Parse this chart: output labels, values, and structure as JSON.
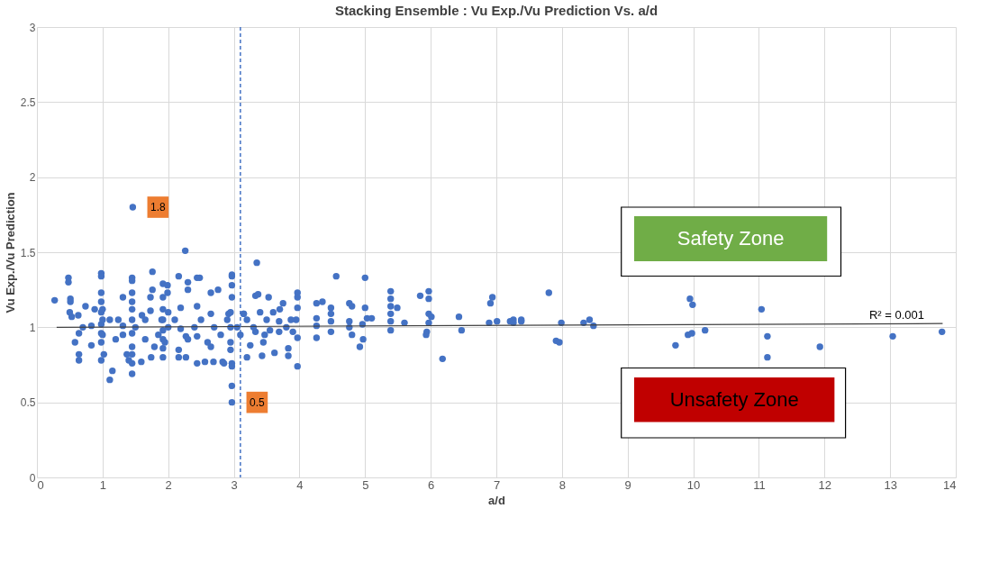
{
  "chart_data": {
    "type": "scatter",
    "title": "Stacking Ensemble : Vu Exp./Vu Prediction Vs. a/d",
    "xlabel": "a/d",
    "ylabel": "Vu Exp./Vu Prediction",
    "xlim": [
      0,
      14
    ],
    "xticks": [
      0,
      1,
      2,
      3,
      4,
      5,
      6,
      7,
      8,
      9,
      10,
      11,
      12,
      13,
      14
    ],
    "ylim": [
      0,
      3
    ],
    "yticks": [
      0,
      0.5,
      1,
      1.5,
      2,
      2.5,
      3
    ],
    "grid": true,
    "series": [
      {
        "color": "#4472c4",
        "marker": "circle",
        "x": [
          1.46,
          0.27,
          0.48,
          0.48,
          0.51,
          0.51,
          0.53,
          0.63,
          0.74,
          0.64,
          0.58,
          0.64,
          0.64,
          0.83,
          0.83,
          0.88,
          0.98,
          0.98,
          0.98,
          0.98,
          0.98,
          0.98,
          0.98,
          0.98,
          0.98,
          1.11,
          1.15,
          1.11,
          1.02,
          1.24,
          1.31,
          1.31,
          1.31,
          1.37,
          1.4,
          1.45,
          1.45,
          1.45,
          1.45,
          1.45,
          1.45,
          1.45,
          1.45,
          1.45,
          1.45,
          1.45,
          1.59,
          1.65,
          1.65,
          1.73,
          1.76,
          1.76,
          1.73,
          1.74,
          1.79,
          1.92,
          1.92,
          1.92,
          1.92,
          1.92,
          1.92,
          1.92,
          1.92,
          1.99,
          1.99,
          2.16,
          2.26,
          2.3,
          2.3,
          2.44,
          2.48,
          2.19,
          2.19,
          2.27,
          2.27,
          2.16,
          2.16,
          2.44,
          2.44,
          2.44,
          2.56,
          2.65,
          2.65,
          2.65,
          2.69,
          2.76,
          2.83,
          2.92,
          2.97,
          2.97,
          2.97,
          2.97,
          2.97,
          2.97,
          3.15,
          3.35,
          2.97,
          2.85,
          2.97,
          3.33,
          3.37,
          3.53,
          3.75,
          3.97,
          3.97,
          3.97,
          3.97,
          3.97,
          3.83,
          3.83,
          3.62,
          3.43,
          3.2,
          3.15,
          3.33,
          3.47,
          3.69,
          3.69,
          3.87,
          3.05,
          3.1,
          3.2,
          3.3,
          3.4,
          3.5,
          3.55,
          3.6,
          3.7,
          3.8,
          3.9,
          3.95,
          3.45,
          3.25,
          2.95,
          2.95,
          2.95,
          2.95,
          2.9,
          2.8,
          2.7,
          2.6,
          2.5,
          2.4,
          2.3,
          2.1,
          2.0,
          1.95,
          1.9,
          1.85,
          2.0,
          1.5,
          1.0,
          1.0,
          1.0,
          0.5,
          0.7,
          1.2,
          1.6,
          4.26,
          4.35,
          4.26,
          4.26,
          4.26,
          4.48,
          4.48,
          4.48,
          4.48,
          4.56,
          4.76,
          4.8,
          4.76,
          4.76,
          4.8,
          4.92,
          4.97,
          5.0,
          5.0,
          5.03,
          5.1,
          4.96,
          5.39,
          5.39,
          5.39,
          5.39,
          5.49,
          5.39,
          5.39,
          5.6,
          5.84,
          5.97,
          5.97,
          5.97,
          5.97,
          5.94,
          5.93,
          6.01,
          6.18,
          6.43,
          6.47,
          6.94,
          6.91,
          6.89,
          7.01,
          7.21,
          7.26,
          7.38,
          7.38,
          7.26,
          7.8,
          7.91,
          7.96,
          7.99,
          8.33,
          8.42,
          8.48,
          9.73,
          9.92,
          9.98,
          10.18,
          9.95,
          9.99,
          11.04,
          11.13,
          11.13,
          11.93,
          13.04,
          13.79
        ],
        "values": [
          1.8,
          1.18,
          1.33,
          1.3,
          1.19,
          1.17,
          1.07,
          1.08,
          1.14,
          0.96,
          0.9,
          0.82,
          0.78,
          1.01,
          0.88,
          1.12,
          1.36,
          1.34,
          1.23,
          1.17,
          1.1,
          1.02,
          0.96,
          0.9,
          0.78,
          1.05,
          0.71,
          0.65,
          0.82,
          1.05,
          1.2,
          1.01,
          0.95,
          0.82,
          0.78,
          1.33,
          1.31,
          1.23,
          1.17,
          1.12,
          1.05,
          0.96,
          0.87,
          0.82,
          0.76,
          0.69,
          0.77,
          1.05,
          0.92,
          1.2,
          1.37,
          1.25,
          1.11,
          0.8,
          0.87,
          1.29,
          1.2,
          1.12,
          1.05,
          0.98,
          0.92,
          0.86,
          0.8,
          1.28,
          1.23,
          1.34,
          1.51,
          1.3,
          1.25,
          1.33,
          1.33,
          1.13,
          0.99,
          0.94,
          0.8,
          0.85,
          0.8,
          1.14,
          0.94,
          0.76,
          0.77,
          1.23,
          1.09,
          0.87,
          0.77,
          1.25,
          0.77,
          1.09,
          1.34,
          1.28,
          1.2,
          0.76,
          0.61,
          0.5,
          1.09,
          1.43,
          1.35,
          0.76,
          0.74,
          1.21,
          1.22,
          1.2,
          1.16,
          1.23,
          1.2,
          1.13,
          0.93,
          0.74,
          0.81,
          0.86,
          0.83,
          0.81,
          0.8,
          1.09,
          0.97,
          0.95,
          1.04,
          0.97,
          1.05,
          1.0,
          0.95,
          1.05,
          1.0,
          1.1,
          1.05,
          0.98,
          1.1,
          1.12,
          1.0,
          0.97,
          1.05,
          0.9,
          0.88,
          1.1,
          1.0,
          0.9,
          0.85,
          1.05,
          0.95,
          1.0,
          0.9,
          1.05,
          1.0,
          0.92,
          1.05,
          1.0,
          0.9,
          1.05,
          0.95,
          1.1,
          1.0,
          1.05,
          0.95,
          1.12,
          1.1,
          1.0,
          0.92,
          1.08,
          1.16,
          1.17,
          1.06,
          1.01,
          0.93,
          1.13,
          1.09,
          1.04,
          0.97,
          1.34,
          1.16,
          1.14,
          1.04,
          1.0,
          0.95,
          0.87,
          0.92,
          1.33,
          1.13,
          1.06,
          1.06,
          1.02,
          1.24,
          1.19,
          1.14,
          1.09,
          1.13,
          1.04,
          0.98,
          1.03,
          1.21,
          1.24,
          1.19,
          1.09,
          1.03,
          0.97,
          0.95,
          1.07,
          0.79,
          1.07,
          0.98,
          1.2,
          1.16,
          1.03,
          1.04,
          1.04,
          1.05,
          1.05,
          1.04,
          1.03,
          1.23,
          0.91,
          0.9,
          1.03,
          1.03,
          1.05,
          1.01,
          0.88,
          0.95,
          0.96,
          0.98,
          1.19,
          1.15,
          1.12,
          0.94,
          0.8,
          0.87,
          0.94,
          0.97
        ]
      },
      {
        "type": "line",
        "color": "#404040",
        "x": [
          0.3,
          13.8
        ],
        "values": [
          1.0,
          1.025
        ]
      }
    ],
    "ref_lines": [
      {
        "axis": "x",
        "value": 3.1,
        "color": "#4472c4",
        "line_style": "dashed"
      }
    ],
    "annotations": [
      {
        "text": "1.8",
        "x": 1.46,
        "y": 1.8
      },
      {
        "text": "0.5",
        "x": 2.97,
        "y": 0.5
      },
      {
        "text": "R² = 0.001",
        "x": 13.1,
        "y": 1.02
      },
      "Safety Zone",
      "Unsafety Zone"
    ]
  }
}
